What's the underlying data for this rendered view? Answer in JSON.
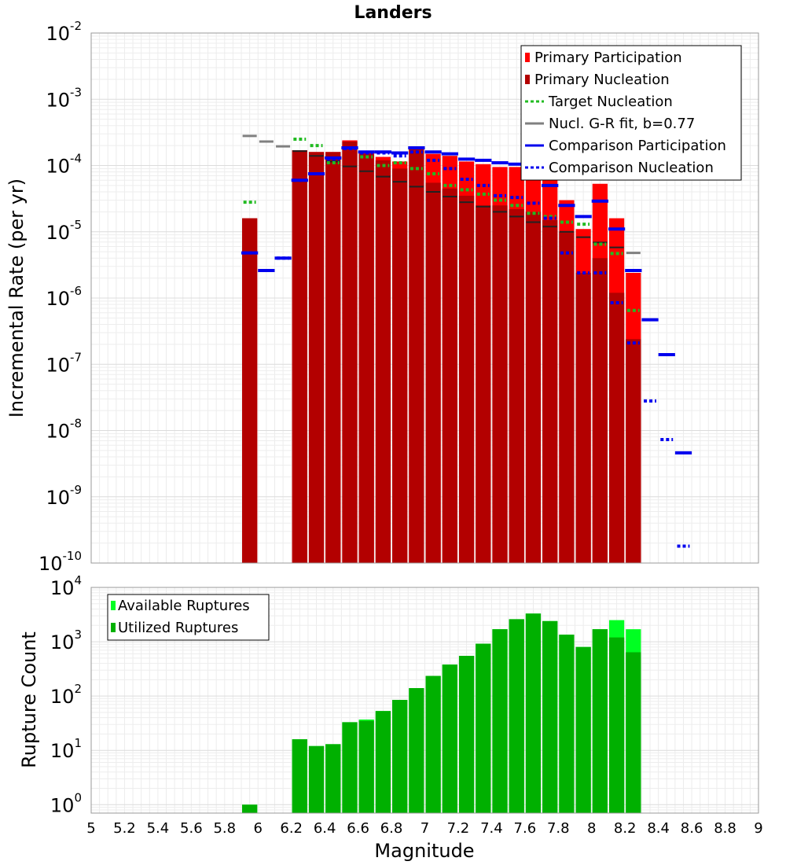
{
  "chart_data": [
    {
      "type": "bar",
      "title": "Landers",
      "xlabel": "",
      "ylabel": "Incremental Rate (per yr)",
      "xlim": [
        5,
        9
      ],
      "ylim": [
        1e-10,
        0.01
      ],
      "yscale": "log",
      "grid": true,
      "legend_position": "top-right",
      "bin_width": 0.1,
      "legend": [
        "Primary Participation",
        "Primary Nucleation",
        "Target Nucleation",
        "Nucl. G-R fit, b=0.77",
        "Comparison Participation",
        "Comparison Nucleation"
      ],
      "colors": {
        "primary_participation": "#ff0000",
        "primary_nucleation": "#b30000",
        "target_nucleation": "#22bb22",
        "gr_fit": "#808080",
        "comparison_participation": "#0000ee",
        "comparison_nucleation": "#0000ee",
        "gr_black": "#222222"
      },
      "series": [
        {
          "name": "Primary Participation",
          "x": [
            5.95,
            6.25,
            6.35,
            6.45,
            6.55,
            6.65,
            6.75,
            6.85,
            6.95,
            7.05,
            7.15,
            7.25,
            7.35,
            7.45,
            7.55,
            7.65,
            7.75,
            7.85,
            7.95,
            8.05,
            8.15,
            8.25
          ],
          "values": [
            1.6e-05,
            0.00017,
            0.00016,
            0.00016,
            0.00024,
            0.00016,
            0.000135,
            0.000115,
            0.00019,
            0.00015,
            0.00014,
            0.000115,
            0.000105,
            9.5e-05,
            9.5e-05,
            8.5e-05,
            6e-05,
            3e-05,
            1.1e-05,
            5.3e-05,
            1.6e-05,
            2.4e-06
          ]
        },
        {
          "name": "Primary Nucleation",
          "x": [
            5.95,
            6.25,
            6.35,
            6.45,
            6.55,
            6.65,
            6.75,
            6.85,
            6.95,
            7.05,
            7.15,
            7.25,
            7.35,
            7.45,
            7.55,
            7.65,
            7.75,
            7.85,
            7.95,
            8.05,
            8.15,
            8.25
          ],
          "values": [
            1.6e-05,
            0.00017,
            0.00016,
            0.00016,
            0.00023,
            0.00015,
            0.00012,
            9e-05,
            0.00018,
            5.5e-05,
            4.5e-05,
            3.5e-05,
            2.5e-05,
            2.5e-05,
            2.2e-05,
            2e-05,
            1.5e-05,
            1e-05,
            2.4e-06,
            4e-06,
            1.2e-06,
            2.4e-07
          ]
        },
        {
          "name": "Target Nucleation",
          "x": [
            5.95,
            6.25,
            6.35,
            6.45,
            6.55,
            6.65,
            6.75,
            6.85,
            6.95,
            7.05,
            7.15,
            7.25,
            7.35,
            7.45,
            7.55,
            7.65,
            7.75,
            7.85,
            7.95,
            8.05,
            8.15,
            8.25
          ],
          "values": [
            2.8e-05,
            0.00025,
            0.0002,
            0.00011,
            0.00018,
            0.000135,
            0.0001,
            0.00011,
            9e-05,
            7.5e-05,
            5e-05,
            4.3e-05,
            3.7e-05,
            3e-05,
            2.5e-05,
            1.9e-05,
            1.7e-05,
            1.4e-05,
            1.3e-05,
            6.5e-06,
            4.7e-06,
            6.5e-07
          ]
        },
        {
          "name": "Nucl. G-R fit, b=0.77",
          "x": [
            5.95,
            6.05,
            6.15,
            6.25,
            6.35,
            6.45,
            6.55,
            6.65,
            6.75,
            6.85,
            6.95,
            7.05,
            7.15,
            7.25,
            7.35,
            7.45,
            7.55,
            7.65,
            7.75,
            7.85,
            7.95,
            8.05,
            8.15,
            8.25
          ],
          "values": [
            0.00028,
            0.00023,
            0.000195,
            0.000165,
            0.00014,
            0.000115,
            9.7e-05,
            8.2e-05,
            6.8e-05,
            5.7e-05,
            4.8e-05,
            4e-05,
            3.4e-05,
            2.8e-05,
            2.4e-05,
            2e-05,
            1.7e-05,
            1.4e-05,
            1.2e-05,
            1e-05,
            8.3e-06,
            6.9e-06,
            5.8e-06,
            4.8e-06
          ]
        },
        {
          "name": "Comparison Participation",
          "x": [
            5.95,
            6.05,
            6.15,
            6.25,
            6.35,
            6.45,
            6.55,
            6.65,
            6.75,
            6.85,
            6.95,
            7.05,
            7.15,
            7.25,
            7.35,
            7.45,
            7.55,
            7.65,
            7.75,
            7.85,
            7.95,
            8.05,
            8.15,
            8.25,
            8.35,
            8.45,
            8.55
          ],
          "values": [
            4.8e-06,
            2.6e-06,
            4e-06,
            6e-05,
            7.5e-05,
            0.00013,
            0.000185,
            0.00016,
            0.00016,
            0.000155,
            0.000185,
            0.00016,
            0.00015,
            0.000125,
            0.00012,
            0.00011,
            0.000105,
            9.5e-05,
            5e-05,
            2.5e-05,
            1.7e-05,
            2.9e-05,
            1.1e-05,
            2.6e-06,
            4.7e-07,
            1.4e-07,
            4.6e-09
          ]
        },
        {
          "name": "Comparison Nucleation",
          "x": [
            5.95,
            6.05,
            6.15,
            6.25,
            6.35,
            6.45,
            6.55,
            6.65,
            6.75,
            6.85,
            6.95,
            7.05,
            7.15,
            7.25,
            7.35,
            7.45,
            7.55,
            7.65,
            7.75,
            7.85,
            7.95,
            8.05,
            8.15,
            8.25,
            8.35,
            8.45,
            8.55
          ],
          "values": [
            4.8e-06,
            2.6e-06,
            4e-06,
            6e-05,
            7.5e-05,
            0.000125,
            0.00018,
            0.000155,
            0.000155,
            0.00014,
            0.00016,
            0.00012,
            9e-05,
            6.2e-05,
            5e-05,
            3.5e-05,
            3.3e-05,
            2.7e-05,
            1.6e-05,
            4.8e-06,
            2.4e-06,
            2.4e-06,
            8.5e-07,
            2.1e-07,
            2.8e-08,
            7.3e-09,
            1.8e-10
          ]
        }
      ]
    },
    {
      "type": "bar",
      "title": "",
      "xlabel": "Magnitude",
      "ylabel": "Rupture Count",
      "xlim": [
        5,
        9
      ],
      "ylim": [
        0.7,
        10000
      ],
      "yscale": "log",
      "grid": true,
      "legend_position": "top-left",
      "bin_width": 0.1,
      "xticks": [
        "5",
        "5.2",
        "5.4",
        "5.6",
        "5.8",
        "6",
        "6.2",
        "6.4",
        "6.6",
        "6.8",
        "7",
        "7.2",
        "7.4",
        "7.6",
        "7.8",
        "8",
        "8.2",
        "8.4",
        "8.6",
        "8.8",
        "9"
      ],
      "legend": [
        "Available Ruptures",
        "Utilized Ruptures"
      ],
      "colors": {
        "available": "#00ff22",
        "utilized": "#00b000"
      },
      "series": [
        {
          "name": "Available Ruptures",
          "x": [
            5.95,
            6.25,
            6.35,
            6.45,
            6.55,
            6.65,
            6.75,
            6.85,
            6.95,
            7.05,
            7.15,
            7.25,
            7.35,
            7.45,
            7.55,
            7.65,
            7.75,
            7.85,
            7.95,
            8.05,
            8.15,
            8.25
          ],
          "values": [
            1,
            16,
            12,
            13,
            33,
            37,
            53,
            85,
            140,
            235,
            380,
            550,
            920,
            1700,
            2600,
            3300,
            2400,
            1350,
            800,
            1700,
            2500,
            1700
          ]
        },
        {
          "name": "Utilized Ruptures",
          "x": [
            5.95,
            6.25,
            6.35,
            6.45,
            6.55,
            6.65,
            6.75,
            6.85,
            6.95,
            7.05,
            7.15,
            7.25,
            7.35,
            7.45,
            7.55,
            7.65,
            7.75,
            7.85,
            7.95,
            8.05,
            8.15,
            8.25
          ],
          "values": [
            1,
            16,
            12,
            13,
            33,
            35,
            53,
            85,
            140,
            235,
            380,
            550,
            920,
            1700,
            2600,
            3300,
            2400,
            1350,
            800,
            1700,
            1200,
            640
          ]
        }
      ]
    }
  ]
}
